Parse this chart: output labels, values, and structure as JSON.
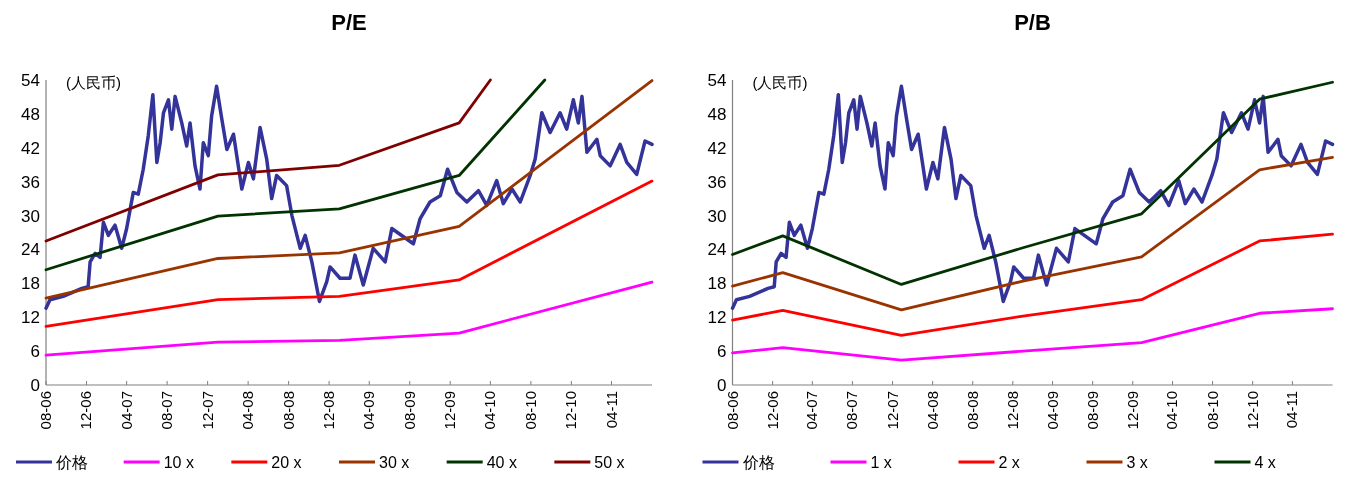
{
  "chart_data": [
    {
      "type": "line",
      "title": "P/E",
      "annotations": [
        "(人民币)"
      ],
      "xlim": [
        "2006-08-01",
        "2011-08-01"
      ],
      "ylim": [
        0,
        54
      ],
      "yticks": [
        0,
        6,
        12,
        18,
        24,
        30,
        36,
        42,
        48,
        54
      ],
      "legend": "bottom",
      "grid": false,
      "xticks": [
        {
          "value": "2006-08-01",
          "label": "08-06"
        },
        {
          "value": "2006-12-01",
          "label": "12-06"
        },
        {
          "value": "2007-04-01",
          "label": "04-07"
        },
        {
          "value": "2007-08-01",
          "label": "08-07"
        },
        {
          "value": "2007-12-01",
          "label": "12-07"
        },
        {
          "value": "2008-04-01",
          "label": "04-08"
        },
        {
          "value": "2008-08-01",
          "label": "08-08"
        },
        {
          "value": "2008-12-01",
          "label": "12-08"
        },
        {
          "value": "2009-04-01",
          "label": "04-09"
        },
        {
          "value": "2009-08-01",
          "label": "08-09"
        },
        {
          "value": "2009-12-01",
          "label": "12-09"
        },
        {
          "value": "2010-04-01",
          "label": "04-10"
        },
        {
          "value": "2010-08-01",
          "label": "08-10"
        },
        {
          "value": "2010-12-01",
          "label": "12-10"
        },
        {
          "value": "2011-04-01",
          "label": "04-11"
        }
      ],
      "series": [
        {
          "name": "价格",
          "color": "#333399",
          "x": [
            "2006-08-01",
            "2006-08-13",
            "2006-09-22",
            "2006-11-17",
            "2006-12-06",
            "2006-12-12",
            "2006-12-27",
            "2007-01-11",
            "2007-01-21",
            "2007-02-05",
            "2007-02-25",
            "2007-03-17",
            "2007-04-01",
            "2007-04-21",
            "2007-05-06",
            "2007-05-21",
            "2007-06-05",
            "2007-06-19",
            "2007-07-01",
            "2007-07-11",
            "2007-07-21",
            "2007-08-05",
            "2007-08-15",
            "2007-08-25",
            "2007-09-14",
            "2007-09-29",
            "2007-10-09",
            "2007-10-24",
            "2007-11-08",
            "2007-11-18",
            "2007-12-03",
            "2007-12-13",
            "2007-12-28",
            "2008-01-13",
            "2008-01-28",
            "2008-02-17",
            "2008-03-13",
            "2008-04-02",
            "2008-04-17",
            "2008-05-07",
            "2008-05-27",
            "2008-06-11",
            "2008-06-26",
            "2008-07-26",
            "2008-08-11",
            "2008-09-05",
            "2008-09-20",
            "2008-10-10",
            "2008-11-02",
            "2008-11-24",
            "2008-12-04",
            "2009-01-03",
            "2009-02-02",
            "2009-02-17",
            "2009-03-14",
            "2009-04-13",
            "2009-05-19",
            "2009-06-08",
            "2009-08-12",
            "2009-09-01",
            "2009-10-01",
            "2009-11-01",
            "2009-11-23",
            "2009-12-21",
            "2010-01-20",
            "2010-02-24",
            "2010-03-21",
            "2010-04-20",
            "2010-05-10",
            "2010-06-05",
            "2010-06-30",
            "2010-07-30",
            "2010-08-14",
            "2010-09-03",
            "2010-09-28",
            "2010-10-28",
            "2010-11-17",
            "2010-12-07",
            "2010-12-22",
            "2011-01-02",
            "2011-01-17",
            "2011-02-16",
            "2011-02-26",
            "2011-03-28",
            "2011-04-27",
            "2011-05-17",
            "2011-06-16",
            "2011-07-11",
            "2011-08-01"
          ],
          "values": [
            13.6,
            15.1,
            15.7,
            17.1,
            17.4,
            21.8,
            23.3,
            22.6,
            28.8,
            26.5,
            28.3,
            24.2,
            27.7,
            34.1,
            33.8,
            38.2,
            44.1,
            51.4,
            39.4,
            42.9,
            48.2,
            50.5,
            45.3,
            51.1,
            46.4,
            42.3,
            46.4,
            38.8,
            34.7,
            42.9,
            40.6,
            47.6,
            52.9,
            47.0,
            41.7,
            44.4,
            34.7,
            39.4,
            36.5,
            45.6,
            40.0,
            33.0,
            37.1,
            35.3,
            30.0,
            24.2,
            26.5,
            21.8,
            14.8,
            18.3,
            20.9,
            18.9,
            18.9,
            23.0,
            17.7,
            24.2,
            21.8,
            27.7,
            25.0,
            29.4,
            32.4,
            33.5,
            38.2,
            34.1,
            32.4,
            34.4,
            31.8,
            36.2,
            32.1,
            34.7,
            32.4,
            37.1,
            40.0,
            48.2,
            44.7,
            48.2,
            45.3,
            50.5,
            46.4,
            51.1,
            41.2,
            43.5,
            40.6,
            38.8,
            42.6,
            39.4,
            37.3,
            43.2,
            42.6
          ]
        },
        {
          "name": "10 x",
          "color": "#ff00ff",
          "x": [
            "2006-08-01",
            "2008-01-01",
            "2009-01-01",
            "2009-12-28",
            "2011-08-01"
          ],
          "values": [
            5.3,
            7.6,
            7.9,
            9.2,
            18.2
          ]
        },
        {
          "name": "20 x",
          "color": "#ff0000",
          "x": [
            "2006-08-01",
            "2008-01-01",
            "2009-01-01",
            "2009-12-28",
            "2011-08-01"
          ],
          "values": [
            10.4,
            15.1,
            15.7,
            18.6,
            36.1
          ]
        },
        {
          "name": "30 x",
          "color": "#993300",
          "x": [
            "2006-08-01",
            "2008-01-01",
            "2009-01-01",
            "2009-12-28",
            "2011-08-01"
          ],
          "values": [
            15.4,
            22.4,
            23.4,
            28.1,
            53.9
          ]
        },
        {
          "name": "40 x",
          "color": "#003300",
          "x": [
            "2006-08-01",
            "2008-01-01",
            "2009-01-01",
            "2009-12-28",
            "2010-09-12"
          ],
          "values": [
            20.4,
            29.9,
            31.2,
            37.1,
            54
          ]
        },
        {
          "name": "50 x",
          "color": "#800000",
          "x": [
            "2006-08-01",
            "2008-01-01",
            "2009-01-01",
            "2009-12-28",
            "2010-04-01"
          ],
          "values": [
            25.5,
            37.2,
            38.9,
            46.4,
            54
          ]
        }
      ]
    },
    {
      "type": "line",
      "title": "P/B",
      "annotations": [
        "(人民币)"
      ],
      "xlim": [
        "2006-08-01",
        "2011-08-01"
      ],
      "ylim": [
        0,
        54
      ],
      "yticks": [
        0,
        6,
        12,
        18,
        24,
        30,
        36,
        42,
        48,
        54
      ],
      "legend": "bottom",
      "grid": false,
      "xticks": [
        {
          "value": "2006-08-01",
          "label": "08-06"
        },
        {
          "value": "2006-12-01",
          "label": "12-06"
        },
        {
          "value": "2007-04-01",
          "label": "04-07"
        },
        {
          "value": "2007-08-01",
          "label": "08-07"
        },
        {
          "value": "2007-12-01",
          "label": "12-07"
        },
        {
          "value": "2008-04-01",
          "label": "04-08"
        },
        {
          "value": "2008-08-01",
          "label": "08-08"
        },
        {
          "value": "2008-12-01",
          "label": "12-08"
        },
        {
          "value": "2009-04-01",
          "label": "04-09"
        },
        {
          "value": "2009-08-01",
          "label": "08-09"
        },
        {
          "value": "2009-12-01",
          "label": "12-09"
        },
        {
          "value": "2010-04-01",
          "label": "04-10"
        },
        {
          "value": "2010-08-01",
          "label": "08-10"
        },
        {
          "value": "2010-12-01",
          "label": "12-10"
        },
        {
          "value": "2011-04-01",
          "label": "04-11"
        }
      ],
      "series": [
        {
          "name": "价格",
          "color": "#333399",
          "x": [
            "2006-08-01",
            "2006-08-13",
            "2006-09-22",
            "2006-11-17",
            "2006-12-06",
            "2006-12-12",
            "2006-12-27",
            "2007-01-11",
            "2007-01-21",
            "2007-02-05",
            "2007-02-25",
            "2007-03-17",
            "2007-04-01",
            "2007-04-21",
            "2007-05-06",
            "2007-05-21",
            "2007-06-05",
            "2007-06-19",
            "2007-07-01",
            "2007-07-11",
            "2007-07-21",
            "2007-08-05",
            "2007-08-15",
            "2007-08-25",
            "2007-09-14",
            "2007-09-29",
            "2007-10-09",
            "2007-10-24",
            "2007-11-08",
            "2007-11-18",
            "2007-12-03",
            "2007-12-13",
            "2007-12-28",
            "2008-01-13",
            "2008-01-28",
            "2008-02-17",
            "2008-03-13",
            "2008-04-02",
            "2008-04-17",
            "2008-05-07",
            "2008-05-27",
            "2008-06-11",
            "2008-06-26",
            "2008-07-26",
            "2008-08-11",
            "2008-09-05",
            "2008-09-20",
            "2008-10-10",
            "2008-11-02",
            "2008-11-24",
            "2008-12-04",
            "2009-01-03",
            "2009-02-02",
            "2009-02-17",
            "2009-03-14",
            "2009-04-13",
            "2009-05-19",
            "2009-06-08",
            "2009-08-12",
            "2009-09-01",
            "2009-10-01",
            "2009-11-01",
            "2009-11-23",
            "2009-12-21",
            "2010-01-20",
            "2010-02-24",
            "2010-03-21",
            "2010-04-20",
            "2010-05-10",
            "2010-06-05",
            "2010-06-30",
            "2010-07-30",
            "2010-08-14",
            "2010-09-03",
            "2010-09-28",
            "2010-10-28",
            "2010-11-17",
            "2010-12-07",
            "2010-12-22",
            "2011-01-02",
            "2011-01-17",
            "2011-02-16",
            "2011-02-26",
            "2011-03-28",
            "2011-04-27",
            "2011-05-17",
            "2011-06-16",
            "2011-07-11",
            "2011-08-01"
          ],
          "values": [
            13.6,
            15.1,
            15.7,
            17.1,
            17.4,
            21.8,
            23.3,
            22.6,
            28.8,
            26.5,
            28.3,
            24.2,
            27.7,
            34.1,
            33.8,
            38.2,
            44.1,
            51.4,
            39.4,
            42.9,
            48.2,
            50.5,
            45.3,
            51.1,
            46.4,
            42.3,
            46.4,
            38.8,
            34.7,
            42.9,
            40.6,
            47.6,
            52.9,
            47.0,
            41.7,
            44.4,
            34.7,
            39.4,
            36.5,
            45.6,
            40.0,
            33.0,
            37.1,
            35.3,
            30.0,
            24.2,
            26.5,
            21.8,
            14.8,
            18.3,
            20.9,
            18.9,
            18.9,
            23.0,
            17.7,
            24.2,
            21.8,
            27.7,
            25.0,
            29.4,
            32.4,
            33.5,
            38.2,
            34.1,
            32.4,
            34.4,
            31.8,
            36.2,
            32.1,
            34.7,
            32.4,
            37.1,
            40.0,
            48.2,
            44.7,
            48.2,
            45.3,
            50.5,
            46.4,
            51.1,
            41.2,
            43.5,
            40.6,
            38.8,
            42.6,
            39.4,
            37.3,
            43.2,
            42.6
          ]
        },
        {
          "name": "1 x",
          "color": "#ff00ff",
          "x": [
            "2006-08-01",
            "2007-01-01",
            "2007-12-28",
            "2009-01-01",
            "2009-12-28",
            "2010-12-22",
            "2011-08-01"
          ],
          "values": [
            5.7,
            6.6,
            4.4,
            6.0,
            7.5,
            12.7,
            13.5
          ]
        },
        {
          "name": "2 x",
          "color": "#ff0000",
          "x": [
            "2006-08-01",
            "2007-01-01",
            "2007-12-28",
            "2009-01-01",
            "2009-12-28",
            "2010-12-22",
            "2011-08-01"
          ],
          "values": [
            11.5,
            13.2,
            8.8,
            12.2,
            15.1,
            25.5,
            26.7
          ]
        },
        {
          "name": "3 x",
          "color": "#993300",
          "x": [
            "2006-08-01",
            "2007-01-01",
            "2007-12-28",
            "2009-01-01",
            "2009-12-28",
            "2010-12-22",
            "2011-08-01"
          ],
          "values": [
            17.5,
            19.9,
            13.3,
            18.4,
            22.7,
            38.1,
            40.3
          ]
        },
        {
          "name": "4 x",
          "color": "#003300",
          "x": [
            "2006-08-01",
            "2007-01-01",
            "2007-12-28",
            "2009-01-01",
            "2009-12-28",
            "2010-12-22",
            "2011-08-01"
          ],
          "values": [
            23.1,
            26.4,
            17.8,
            24.3,
            30.3,
            50.6,
            53.6
          ]
        }
      ]
    }
  ]
}
